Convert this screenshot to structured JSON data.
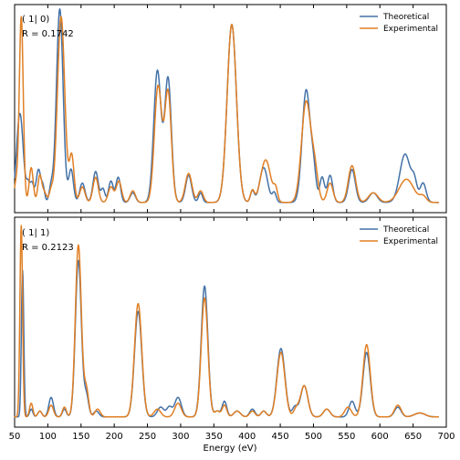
{
  "colors": {
    "theoretical": "#4472a8",
    "experimental": "#e07f24"
  },
  "chart_data": [
    {
      "type": "line",
      "annotation_index": "( 1| 0)",
      "annotation_r": "R = 0.1742",
      "xlim": [
        50,
        700
      ],
      "ylim": [
        0,
        1.0
      ],
      "xticks": [
        50,
        100,
        150,
        200,
        250,
        300,
        350,
        400,
        450,
        500,
        550,
        600,
        650,
        700
      ],
      "xlabel": "",
      "legend_position": "top-right",
      "series": [
        {
          "name": "Theoretical",
          "color_key": "theoretical",
          "peaks": [
            [
              58,
              0.46,
              5
            ],
            [
              70,
              0.08,
              2.5
            ],
            [
              76,
              0.1,
              3
            ],
            [
              86,
              0.17,
              3.5
            ],
            [
              93,
              0.07,
              2.5
            ],
            [
              105,
              0.08,
              3
            ],
            [
              118,
              1.0,
              5
            ],
            [
              135,
              0.17,
              3.5
            ],
            [
              152,
              0.1,
              4
            ],
            [
              172,
              0.16,
              4
            ],
            [
              183,
              0.07,
              3
            ],
            [
              195,
              0.11,
              3.5
            ],
            [
              206,
              0.13,
              3.5
            ],
            [
              228,
              0.05,
              4
            ],
            [
              265,
              0.68,
              5.5
            ],
            [
              281,
              0.64,
              5
            ],
            [
              312,
              0.14,
              4.5
            ],
            [
              330,
              0.05,
              3
            ],
            [
              377,
              0.92,
              7
            ],
            [
              408,
              0.06,
              3
            ],
            [
              425,
              0.18,
              6
            ],
            [
              441,
              0.05,
              3
            ],
            [
              489,
              0.58,
              6
            ],
            [
              500,
              0.15,
              4
            ],
            [
              513,
              0.13,
              3.5
            ],
            [
              525,
              0.14,
              4
            ],
            [
              558,
              0.17,
              5
            ],
            [
              590,
              0.05,
              6
            ],
            [
              638,
              0.25,
              8
            ],
            [
              652,
              0.09,
              4
            ],
            [
              665,
              0.1,
              4.5
            ]
          ]
        },
        {
          "name": "Experimental",
          "color_key": "experimental",
          "peaks": [
            [
              52,
              0.1,
              2.5
            ],
            [
              60,
              0.96,
              3
            ],
            [
              75,
              0.18,
              3
            ],
            [
              88,
              0.14,
              3
            ],
            [
              95,
              0.05,
              3
            ],
            [
              105,
              0.06,
              3
            ],
            [
              120,
              0.96,
              5.5
            ],
            [
              136,
              0.24,
              3.5
            ],
            [
              152,
              0.08,
              4
            ],
            [
              172,
              0.13,
              4
            ],
            [
              195,
              0.08,
              4
            ],
            [
              207,
              0.11,
              4
            ],
            [
              228,
              0.06,
              4
            ],
            [
              266,
              0.6,
              5.5
            ],
            [
              281,
              0.57,
              5
            ],
            [
              312,
              0.15,
              5
            ],
            [
              330,
              0.06,
              4
            ],
            [
              377,
              0.92,
              7
            ],
            [
              408,
              0.06,
              3
            ],
            [
              428,
              0.22,
              7.5
            ],
            [
              443,
              0.06,
              3
            ],
            [
              489,
              0.52,
              7
            ],
            [
              502,
              0.15,
              5
            ],
            [
              525,
              0.1,
              4.5
            ],
            [
              558,
              0.19,
              5.5
            ],
            [
              590,
              0.05,
              7
            ],
            [
              640,
              0.12,
              11
            ],
            [
              665,
              0.03,
              5
            ]
          ]
        }
      ]
    },
    {
      "type": "line",
      "annotation_index": "( 1| 1)",
      "annotation_r": "R = 0.2123",
      "xlim": [
        50,
        700
      ],
      "ylim": [
        0,
        1.0
      ],
      "xticks": [
        50,
        100,
        150,
        200,
        250,
        300,
        350,
        400,
        450,
        500,
        550,
        600,
        650,
        700
      ],
      "xlabel": "Energy (eV)",
      "legend_position": "top-right",
      "series": [
        {
          "name": "Theoretical",
          "color_key": "theoretical",
          "peaks": [
            [
              62,
              0.75,
              1.8
            ],
            [
              75,
              0.04,
              2.5
            ],
            [
              88,
              0.03,
              3
            ],
            [
              105,
              0.1,
              3.5
            ],
            [
              125,
              0.04,
              3
            ],
            [
              146,
              0.8,
              4.5
            ],
            [
              158,
              0.11,
              3.5
            ],
            [
              173,
              0.03,
              4
            ],
            [
              236,
              0.54,
              5.5
            ],
            [
              270,
              0.05,
              5
            ],
            [
              283,
              0.05,
              4
            ],
            [
              296,
              0.1,
              5
            ],
            [
              336,
              0.67,
              5
            ],
            [
              355,
              0.03,
              4
            ],
            [
              366,
              0.08,
              3.5
            ],
            [
              385,
              0.03,
              5
            ],
            [
              408,
              0.04,
              4
            ],
            [
              425,
              0.03,
              4
            ],
            [
              451,
              0.35,
              6
            ],
            [
              472,
              0.05,
              4
            ],
            [
              486,
              0.16,
              5.5
            ],
            [
              520,
              0.04,
              5
            ],
            [
              558,
              0.08,
              4.5
            ],
            [
              580,
              0.33,
              5.5
            ],
            [
              627,
              0.05,
              5
            ],
            [
              660,
              0.02,
              8
            ]
          ]
        },
        {
          "name": "Experimental",
          "color_key": "experimental",
          "peaks": [
            [
              60,
              0.98,
              2
            ],
            [
              75,
              0.07,
              2.5
            ],
            [
              88,
              0.03,
              3
            ],
            [
              105,
              0.06,
              3.5
            ],
            [
              125,
              0.05,
              3
            ],
            [
              146,
              0.88,
              4.5
            ],
            [
              158,
              0.14,
              3.5
            ],
            [
              175,
              0.04,
              4
            ],
            [
              236,
              0.58,
              5.5
            ],
            [
              265,
              0.04,
              5
            ],
            [
              296,
              0.07,
              5
            ],
            [
              336,
              0.61,
              5
            ],
            [
              355,
              0.03,
              4
            ],
            [
              366,
              0.06,
              3.5
            ],
            [
              385,
              0.03,
              5
            ],
            [
              408,
              0.03,
              4
            ],
            [
              425,
              0.03,
              4
            ],
            [
              451,
              0.33,
              6
            ],
            [
              474,
              0.04,
              4
            ],
            [
              486,
              0.16,
              5.5
            ],
            [
              520,
              0.04,
              5
            ],
            [
              552,
              0.05,
              5
            ],
            [
              580,
              0.37,
              5.5
            ],
            [
              627,
              0.06,
              5
            ],
            [
              660,
              0.02,
              8
            ]
          ]
        }
      ]
    }
  ]
}
